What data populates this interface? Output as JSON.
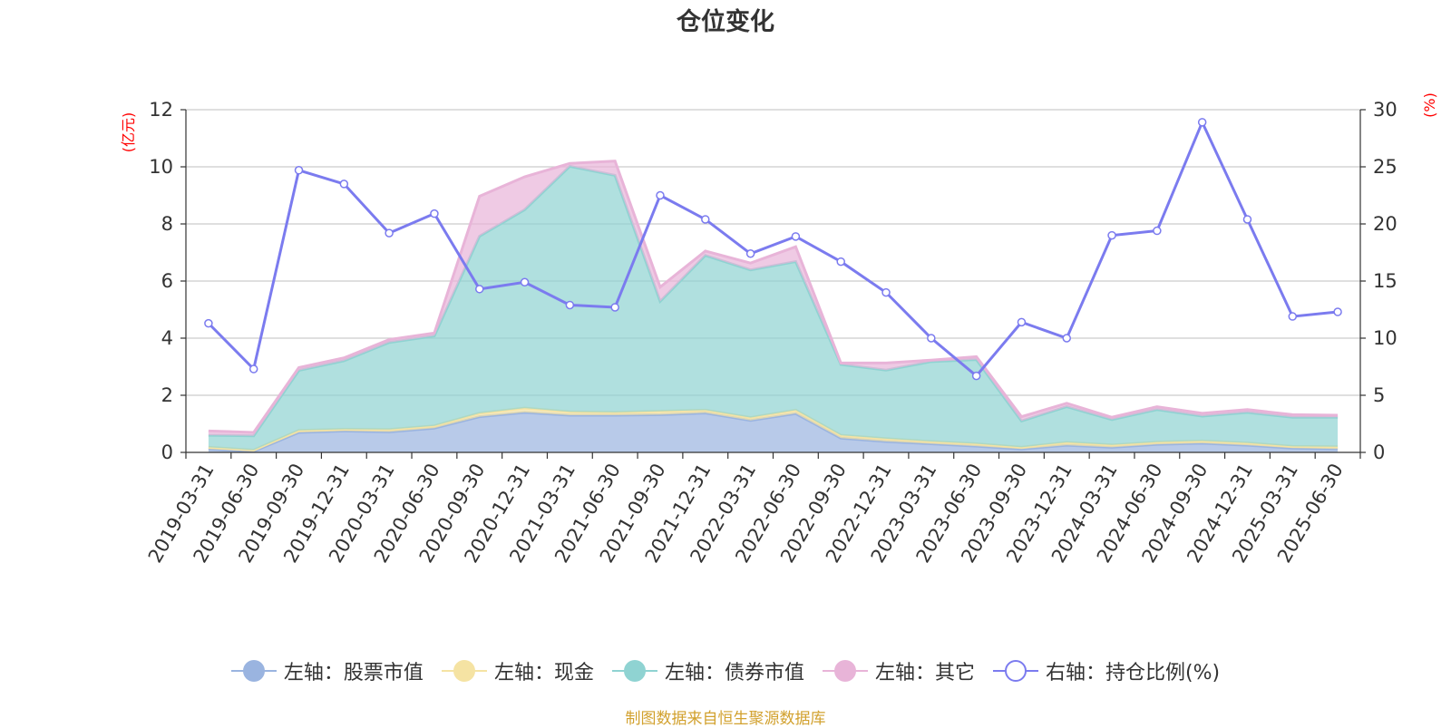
{
  "chart_data": {
    "type": "area",
    "title": "仓位变化",
    "source": "制图数据来自恒生聚源数据库",
    "left_axis": {
      "unit": "(亿元)",
      "range": [
        0,
        12
      ],
      "ticks": [
        "0",
        "2",
        "4",
        "6",
        "8",
        "10",
        "12"
      ]
    },
    "right_axis": {
      "unit": "(%)",
      "range": [
        0,
        30
      ],
      "ticks": [
        "0",
        "5",
        "10",
        "15",
        "20",
        "25",
        "30"
      ]
    },
    "grid": true,
    "legend_position": "bottom",
    "categories": [
      "2019-03-31",
      "2019-06-30",
      "2019-09-30",
      "2019-12-31",
      "2020-03-31",
      "2020-06-30",
      "2020-09-30",
      "2020-12-31",
      "2021-03-31",
      "2021-06-30",
      "2021-09-30",
      "2021-12-31",
      "2022-03-31",
      "2022-06-30",
      "2022-09-30",
      "2022-12-31",
      "2023-03-31",
      "2023-06-30",
      "2023-09-30",
      "2023-12-31",
      "2024-03-31",
      "2024-06-30",
      "2024-09-30",
      "2024-12-31",
      "2025-03-31",
      "2025-06-30"
    ],
    "series": [
      {
        "name": "左轴：股票市值",
        "axis": "left",
        "color": "#9ab4e0",
        "values": [
          0.12,
          0.04,
          0.7,
          0.75,
          0.72,
          0.85,
          1.25,
          1.4,
          1.3,
          1.3,
          1.32,
          1.38,
          1.12,
          1.36,
          0.5,
          0.38,
          0.3,
          0.22,
          0.12,
          0.25,
          0.18,
          0.28,
          0.32,
          0.25,
          0.15,
          0.12
        ]
      },
      {
        "name": "左轴：现金",
        "axis": "left",
        "color": "#f5e3a3",
        "values": [
          0.06,
          0.04,
          0.07,
          0.06,
          0.08,
          0.08,
          0.12,
          0.15,
          0.12,
          0.1,
          0.12,
          0.1,
          0.1,
          0.12,
          0.1,
          0.1,
          0.08,
          0.08,
          0.06,
          0.1,
          0.08,
          0.08,
          0.08,
          0.08,
          0.06,
          0.08
        ]
      },
      {
        "name": "左轴：债券市值",
        "axis": "left",
        "color": "#8fd3d2",
        "values": [
          0.42,
          0.5,
          2.1,
          2.4,
          3.05,
          3.15,
          6.2,
          6.95,
          8.6,
          8.3,
          3.85,
          5.42,
          5.17,
          5.2,
          2.48,
          2.4,
          2.8,
          2.95,
          0.92,
          1.25,
          0.89,
          1.14,
          0.87,
          1.07,
          1.02,
          1.03
        ]
      },
      {
        "name": "左轴：其它",
        "axis": "left",
        "color": "#e8b4d8",
        "values": [
          0.15,
          0.12,
          0.1,
          0.1,
          0.1,
          0.1,
          1.4,
          1.15,
          0.1,
          0.5,
          0.5,
          0.15,
          0.24,
          0.52,
          0.05,
          0.25,
          0.05,
          0.1,
          0.15,
          0.12,
          0.08,
          0.1,
          0.1,
          0.1,
          0.09,
          0.07
        ]
      },
      {
        "name": "右轴：持仓比例(%)",
        "axis": "right",
        "color": "#7b7bef",
        "values": [
          11.3,
          7.3,
          24.7,
          23.5,
          19.2,
          20.9,
          14.3,
          14.9,
          12.9,
          12.7,
          22.5,
          20.4,
          17.4,
          18.9,
          16.7,
          14.0,
          10.0,
          6.7,
          11.4,
          10.0,
          19.0,
          19.4,
          28.9,
          20.4,
          11.9,
          12.3
        ]
      }
    ]
  }
}
